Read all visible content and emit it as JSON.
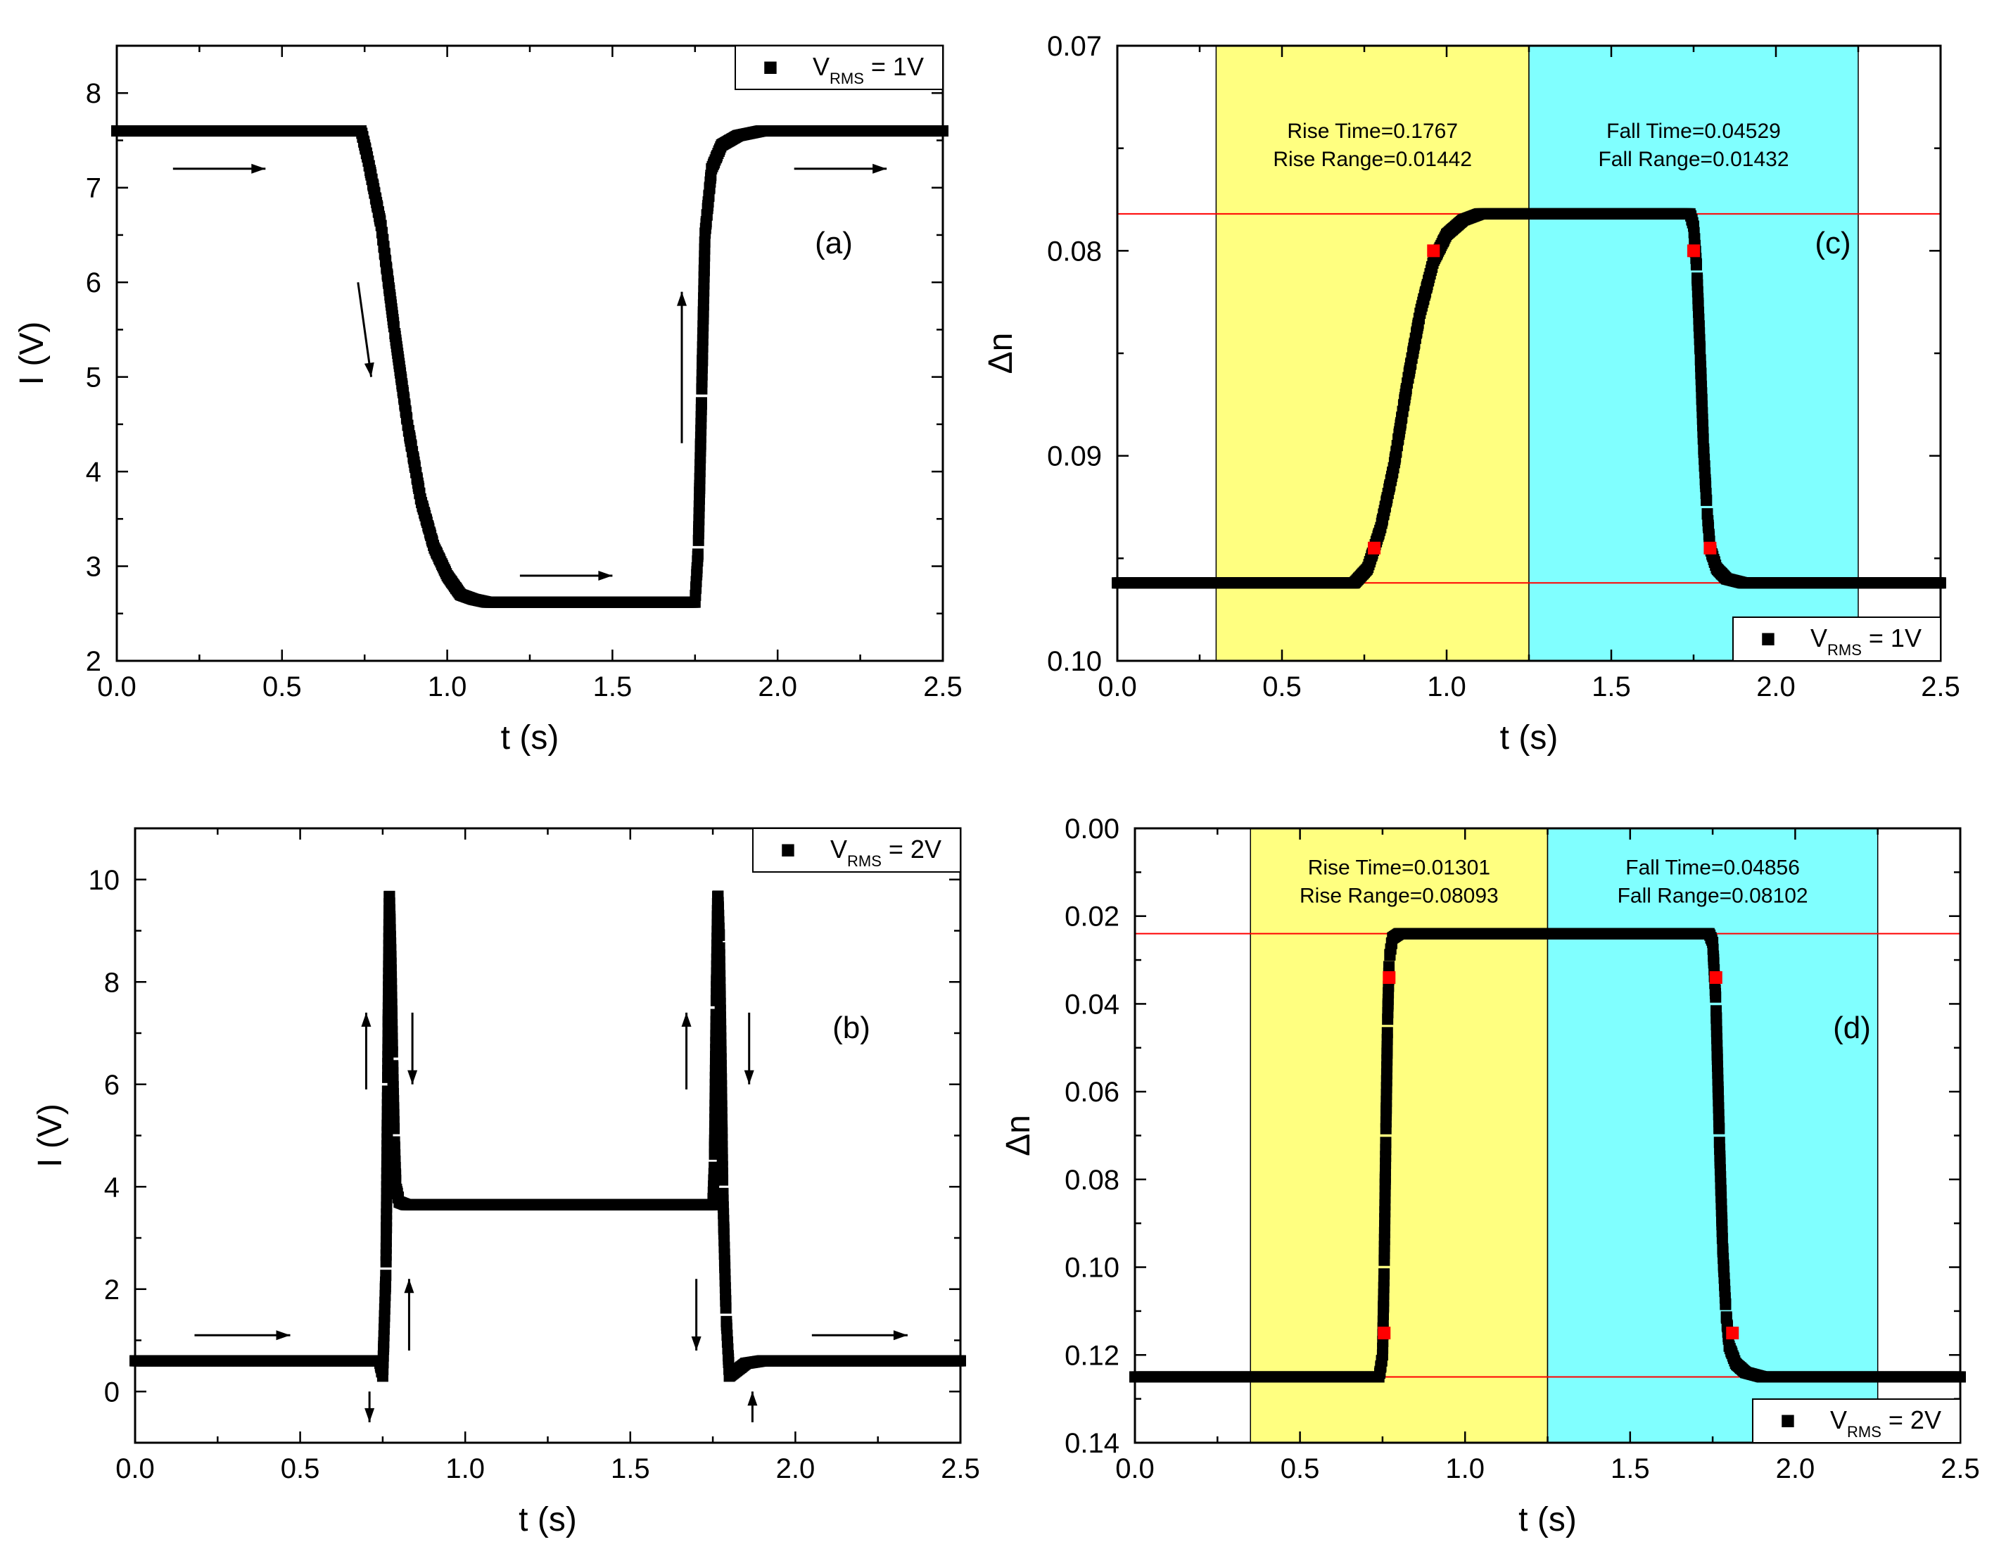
{
  "chart_data": [
    {
      "id": "a",
      "type": "scatter",
      "panel_label": "(a)",
      "xlabel": "t (s)",
      "ylabel": "I (V)",
      "xlim": [
        0.0,
        2.5
      ],
      "ylim": [
        2,
        8.5
      ],
      "reverse_y": false,
      "xticks": [
        0.0,
        0.5,
        1.0,
        1.5,
        2.0,
        2.5
      ],
      "xtick_labels": [
        "0.0",
        "0.5",
        "1.0",
        "1.5",
        "2.0",
        "2.5"
      ],
      "yticks": [
        2,
        3,
        4,
        5,
        6,
        7,
        8
      ],
      "ytick_labels": [
        "2",
        "3",
        "4",
        "5",
        "6",
        "7",
        "8"
      ],
      "legend": {
        "marker": "■",
        "prefix": "V",
        "sub": "RMS",
        "suffix": " = 1V",
        "position": "top-right"
      },
      "series": [
        {
          "name": "V_RMS = 1V",
          "color": "#000000",
          "t": [
            0.0,
            0.74,
            0.76,
            0.8,
            0.84,
            0.88,
            0.92,
            0.96,
            1.0,
            1.04,
            1.08,
            1.12,
            1.75,
            1.76,
            1.77,
            1.78,
            1.8,
            1.83,
            1.88,
            1.95,
            2.05,
            2.5
          ],
          "y": [
            7.6,
            7.6,
            7.3,
            6.6,
            5.5,
            4.5,
            3.7,
            3.2,
            2.9,
            2.7,
            2.65,
            2.62,
            2.62,
            3.2,
            4.8,
            6.5,
            7.2,
            7.45,
            7.55,
            7.6,
            7.6,
            7.6
          ]
        }
      ],
      "arrows": [
        {
          "t1": 0.17,
          "y1": 7.2,
          "t2": 0.45,
          "y2": 7.2
        },
        {
          "t1": 0.73,
          "y1": 6.0,
          "t2": 0.77,
          "y2": 5.0
        },
        {
          "t1": 1.22,
          "y1": 2.9,
          "t2": 1.5,
          "y2": 2.9
        },
        {
          "t1": 1.71,
          "y1": 4.3,
          "t2": 1.71,
          "y2": 5.9
        },
        {
          "t1": 2.05,
          "y1": 7.2,
          "t2": 2.33,
          "y2": 7.2
        }
      ]
    },
    {
      "id": "b",
      "type": "scatter",
      "panel_label": "(b)",
      "xlabel": "t (s)",
      "ylabel": "I (V)",
      "xlim": [
        0.0,
        2.5
      ],
      "ylim": [
        -1,
        11
      ],
      "reverse_y": false,
      "xticks": [
        0.0,
        0.5,
        1.0,
        1.5,
        2.0,
        2.5
      ],
      "xtick_labels": [
        "0.0",
        "0.5",
        "1.0",
        "1.5",
        "2.0",
        "2.5"
      ],
      "yticks": [
        0,
        2,
        4,
        6,
        8,
        10
      ],
      "ytick_labels": [
        "0",
        "2",
        "4",
        "6",
        "8",
        "10"
      ],
      "legend": {
        "marker": "■",
        "prefix": "V",
        "sub": "RMS",
        "suffix": " = 2V",
        "position": "top-right"
      },
      "series": [
        {
          "name": "V_RMS = 2V",
          "color": "#000000",
          "t": [
            0.0,
            0.74,
            0.75,
            0.76,
            0.765,
            0.77,
            0.775,
            0.78,
            0.785,
            0.79,
            0.8,
            0.82,
            1.75,
            1.755,
            1.76,
            1.765,
            1.77,
            1.775,
            1.78,
            1.79,
            1.8,
            1.82,
            1.85,
            1.9,
            2.5
          ],
          "y": [
            0.6,
            0.6,
            0.3,
            2.4,
            6.0,
            9.8,
            8.5,
            6.5,
            5.0,
            4.0,
            3.7,
            3.65,
            3.65,
            4.5,
            7.5,
            9.8,
            8.8,
            6.5,
            4.0,
            1.5,
            0.3,
            0.4,
            0.55,
            0.6,
            0.6
          ]
        }
      ],
      "arrows": [
        {
          "t1": 0.18,
          "y1": 1.1,
          "t2": 0.47,
          "y2": 1.1
        },
        {
          "t1": 0.71,
          "y1": 0.0,
          "t2": 0.71,
          "y2": -0.6
        },
        {
          "t1": 0.7,
          "y1": 5.9,
          "t2": 0.7,
          "y2": 7.4
        },
        {
          "t1": 0.84,
          "y1": 7.4,
          "t2": 0.84,
          "y2": 6.0
        },
        {
          "t1": 0.83,
          "y1": 0.8,
          "t2": 0.83,
          "y2": 2.2
        },
        {
          "t1": 1.67,
          "y1": 5.9,
          "t2": 1.67,
          "y2": 7.4
        },
        {
          "t1": 1.86,
          "y1": 7.4,
          "t2": 1.86,
          "y2": 6.0
        },
        {
          "t1": 1.7,
          "y1": 2.2,
          "t2": 1.7,
          "y2": 0.8
        },
        {
          "t1": 1.87,
          "y1": -0.6,
          "t2": 1.87,
          "y2": 0.0
        },
        {
          "t1": 2.05,
          "y1": 1.1,
          "t2": 2.34,
          "y2": 1.1
        }
      ]
    },
    {
      "id": "c",
      "type": "scatter",
      "panel_label": "(c)",
      "xlabel": "t (s)",
      "ylabel": "Δn",
      "xlim": [
        0.0,
        2.5
      ],
      "ylim": [
        0.07,
        0.1
      ],
      "reverse_y": true,
      "xticks": [
        0.0,
        0.5,
        1.0,
        1.5,
        2.0,
        2.5
      ],
      "xtick_labels": [
        "0.0",
        "0.5",
        "1.0",
        "1.5",
        "2.0",
        "2.5"
      ],
      "yticks": [
        0.07,
        0.08,
        0.09,
        0.1
      ],
      "ytick_labels": [
        "0.07",
        "0.08",
        "0.09",
        "0.10"
      ],
      "legend": {
        "marker": "■",
        "prefix": "V",
        "sub": "RMS",
        "suffix": " = 1V",
        "position": "bottom-right"
      },
      "regions": [
        {
          "x0": 0.3,
          "x1": 1.25,
          "color": "#ffff80"
        },
        {
          "x0": 1.25,
          "x1": 2.25,
          "color": "#80ffff"
        }
      ],
      "hlines": [
        0.0782,
        0.0962
      ],
      "hline_color": "#ff0000",
      "annotations": [
        {
          "lines": [
            "Rise Time=0.1767",
            "Rise Range=0.01442"
          ],
          "t": 0.775,
          "y": 0.0745
        },
        {
          "lines": [
            "Fall Time=0.04529",
            "Fall Range=0.01432"
          ],
          "t": 1.75,
          "y": 0.0745
        }
      ],
      "series": [
        {
          "name": "V_RMS = 1V",
          "color": "#000000",
          "t": [
            0.0,
            0.72,
            0.76,
            0.8,
            0.84,
            0.88,
            0.92,
            0.96,
            1.0,
            1.05,
            1.1,
            1.2,
            1.74,
            1.75,
            1.76,
            1.77,
            1.78,
            1.79,
            1.8,
            1.82,
            1.85,
            1.9,
            2.5
          ],
          "y": [
            0.0962,
            0.0962,
            0.0955,
            0.0935,
            0.0905,
            0.0865,
            0.083,
            0.0805,
            0.0792,
            0.0785,
            0.0782,
            0.0782,
            0.0782,
            0.0788,
            0.081,
            0.085,
            0.0895,
            0.0925,
            0.0945,
            0.0955,
            0.096,
            0.0962,
            0.0962
          ]
        }
      ],
      "red_points": [
        {
          "t": 0.78,
          "y": 0.0945
        },
        {
          "t": 0.96,
          "y": 0.08
        },
        {
          "t": 1.75,
          "y": 0.08
        },
        {
          "t": 1.8,
          "y": 0.0945
        }
      ]
    },
    {
      "id": "d",
      "type": "scatter",
      "panel_label": "(d)",
      "xlabel": "t (s)",
      "ylabel": "Δn",
      "xlim": [
        0.0,
        2.5
      ],
      "ylim": [
        0.0,
        0.14
      ],
      "reverse_y": true,
      "xticks": [
        0.0,
        0.5,
        1.0,
        1.5,
        2.0,
        2.5
      ],
      "xtick_labels": [
        "0.0",
        "0.5",
        "1.0",
        "1.5",
        "2.0",
        "2.5"
      ],
      "yticks": [
        0.0,
        0.02,
        0.04,
        0.06,
        0.08,
        0.1,
        0.12,
        0.14
      ],
      "ytick_labels": [
        "0.00",
        "0.02",
        "0.04",
        "0.06",
        "0.08",
        "0.10",
        "0.12",
        "0.14"
      ],
      "legend": {
        "marker": "■",
        "prefix": "V",
        "sub": "RMS",
        "suffix": " = 2V",
        "position": "bottom-right"
      },
      "regions": [
        {
          "x0": 0.35,
          "x1": 1.25,
          "color": "#ffff80"
        },
        {
          "x0": 1.25,
          "x1": 2.25,
          "color": "#80ffff"
        }
      ],
      "hlines": [
        0.024,
        0.125
      ],
      "hline_color": "#ff0000",
      "annotations": [
        {
          "lines": [
            "Rise Time=0.01301",
            "Rise Range=0.08093"
          ],
          "t": 0.8,
          "y": 0.0105
        },
        {
          "lines": [
            "Fall Time=0.04856",
            "Fall Range=0.08102"
          ],
          "t": 1.75,
          "y": 0.0105
        }
      ],
      "series": [
        {
          "name": "V_RMS = 2V",
          "color": "#000000",
          "t": [
            0.0,
            0.74,
            0.75,
            0.755,
            0.76,
            0.765,
            0.77,
            0.78,
            0.8,
            1.74,
            1.75,
            1.76,
            1.77,
            1.78,
            1.79,
            1.8,
            1.82,
            1.85,
            1.9,
            2.5
          ],
          "y": [
            0.125,
            0.125,
            0.12,
            0.1,
            0.07,
            0.045,
            0.03,
            0.025,
            0.024,
            0.024,
            0.026,
            0.04,
            0.07,
            0.095,
            0.11,
            0.118,
            0.122,
            0.124,
            0.125,
            0.125
          ]
        }
      ],
      "red_points": [
        {
          "t": 0.755,
          "y": 0.115
        },
        {
          "t": 0.77,
          "y": 0.034
        },
        {
          "t": 1.76,
          "y": 0.034
        },
        {
          "t": 1.81,
          "y": 0.115
        }
      ]
    }
  ]
}
